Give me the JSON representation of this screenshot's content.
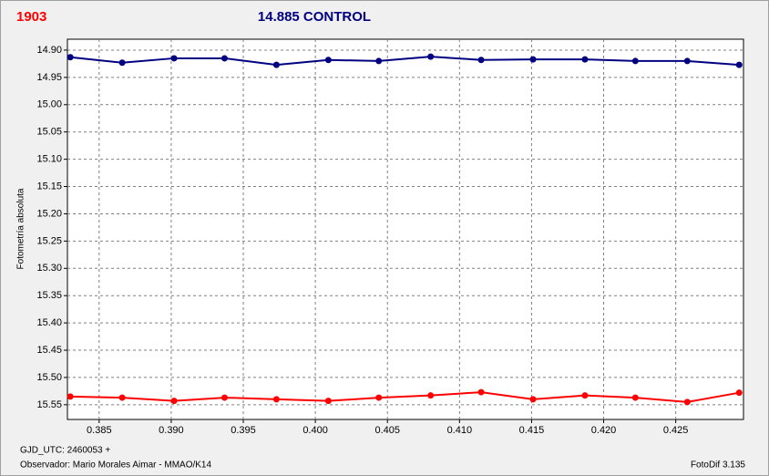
{
  "chart_data": {
    "type": "line",
    "label": "1903",
    "title": "14.885 CONTROL",
    "ylabel": "Fotometría absoluta",
    "footer": [
      "GJD_UTC: 2460053 +",
      "Observador: Mario Morales Aimar - MMAO/K14"
    ],
    "footer_right": "FotoDif 3.135",
    "x": [
      0.383,
      0.3866,
      0.3902,
      0.3937,
      0.3973,
      0.4009,
      0.4044,
      0.408,
      0.4115,
      0.4151,
      0.4187,
      0.4222,
      0.4258,
      0.4294
    ],
    "series": [
      {
        "color": "#000080",
        "values": [
          14.913,
          14.923,
          14.915,
          14.915,
          14.927,
          14.918,
          14.92,
          14.912,
          14.918,
          14.917,
          14.917,
          14.92,
          14.92,
          14.927
        ]
      },
      {
        "color": "#ff0000",
        "values": [
          15.535,
          15.537,
          15.543,
          15.537,
          15.54,
          15.543,
          15.537,
          15.533,
          15.527,
          15.54,
          15.533,
          15.537,
          15.545,
          15.528
        ]
      }
    ],
    "xlim": [
      0.3828,
      0.4297
    ],
    "xticks": [
      0.385,
      {
        "value": 0.39,
        "label": "0.390"
      },
      0.395,
      {
        "value": 0.4,
        "label": "0.400"
      },
      0.405,
      {
        "value": 0.41,
        "label": "0.410"
      },
      0.415,
      {
        "value": 0.42,
        "label": "0.420"
      },
      0.425
    ],
    "ylim": [
      15.577,
      14.88
    ],
    "yticks": [
      {
        "value": 14.9,
        "label": "14.90"
      },
      14.95,
      {
        "value": 15.0,
        "label": "15.00"
      },
      15.05,
      {
        "value": 15.1,
        "label": "15.10"
      },
      15.15,
      {
        "value": 15.2,
        "label": "15.20"
      },
      15.25,
      {
        "value": 15.3,
        "label": "15.30"
      },
      15.35,
      {
        "value": 15.4,
        "label": "15.40"
      },
      15.45,
      {
        "value": 15.5,
        "label": "15.50"
      },
      15.55
    ],
    "grid": true
  }
}
